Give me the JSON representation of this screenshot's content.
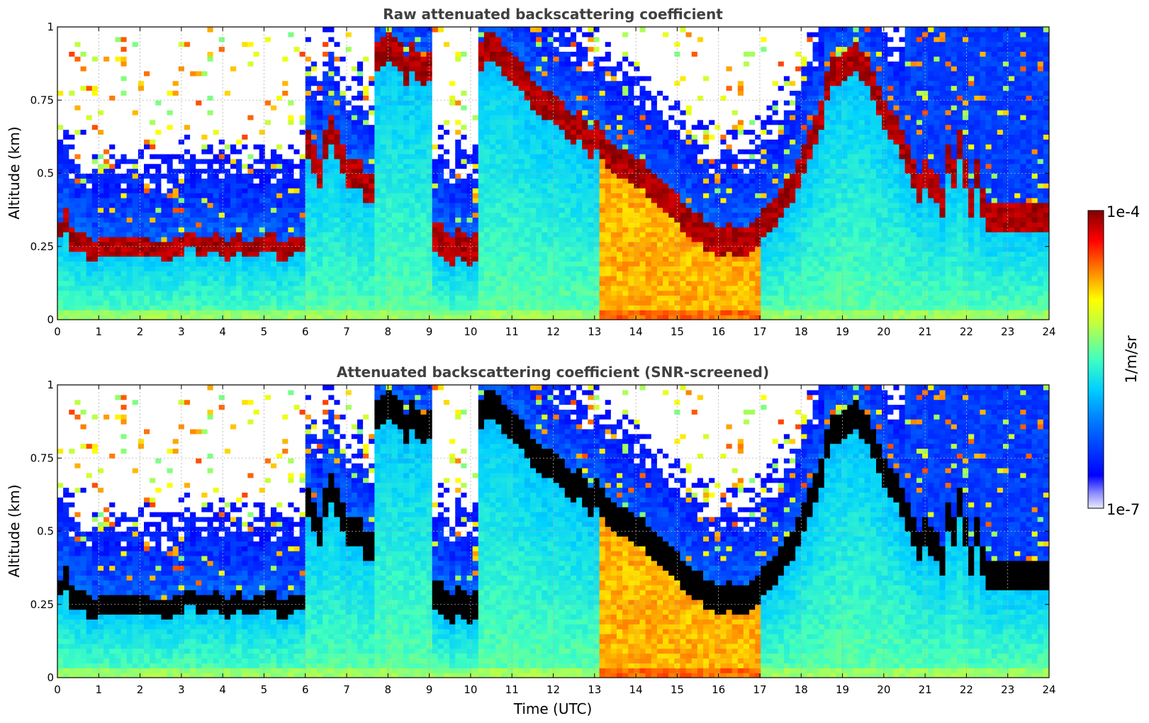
{
  "chart_data": [
    {
      "type": "heatmap",
      "title": "Raw attenuated backscattering coefficient",
      "xlabel": "",
      "ylabel": "Altitude (km)",
      "xlim": [
        0,
        24
      ],
      "ylim": [
        0,
        1
      ],
      "x_ticks": [
        "0",
        "1",
        "2",
        "3",
        "4",
        "5",
        "6",
        "7",
        "8",
        "9",
        "10",
        "11",
        "12",
        "13",
        "14",
        "15",
        "16",
        "17",
        "18",
        "19",
        "20",
        "21",
        "22",
        "23",
        "24"
      ],
      "y_ticks": [
        "0",
        "0.25",
        "0.5",
        "0.75",
        "1"
      ],
      "grid": true,
      "screened": false
    },
    {
      "type": "heatmap",
      "title": "Attenuated backscattering coefficient (SNR-screened)",
      "xlabel": "Time (UTC)",
      "ylabel": "Altitude (km)",
      "xlim": [
        0,
        24
      ],
      "ylim": [
        0,
        1
      ],
      "x_ticks": [
        "0",
        "1",
        "2",
        "3",
        "4",
        "5",
        "6",
        "7",
        "8",
        "9",
        "10",
        "11",
        "12",
        "13",
        "14",
        "15",
        "16",
        "17",
        "18",
        "19",
        "20",
        "21",
        "22",
        "23",
        "24"
      ],
      "y_ticks": [
        "0",
        "0.25",
        "0.5",
        "0.75",
        "1"
      ],
      "grid": true,
      "screened": true
    }
  ],
  "colorbar": {
    "label": "1/m/sr",
    "max_label": "1e-4",
    "min_label": "1e-7",
    "scale": "log",
    "range": [
      1e-07,
      0.0001
    ],
    "colormap": "jet"
  },
  "profile": {
    "cloud_base_km": [
      0.28,
      0.3,
      0.24,
      0.24,
      0.24,
      0.2,
      0.2,
      0.22,
      0.22,
      0.22,
      0.22,
      0.22,
      0.22,
      0.22,
      0.22,
      0.22,
      0.21,
      0.21,
      0.2,
      0.2,
      0.22,
      0.22,
      0.25,
      0.25,
      0.22,
      0.22,
      0.23,
      0.24,
      0.22,
      0.2,
      0.22,
      0.24,
      0.21,
      0.21,
      0.22,
      0.23,
      0.24,
      0.24,
      0.2,
      0.2,
      0.22,
      0.23,
      0.23,
      0.55,
      0.5,
      0.45,
      0.55,
      0.6,
      0.55,
      0.5,
      0.45,
      0.45,
      0.45,
      0.4,
      0.4,
      0.85,
      0.86,
      0.88,
      0.86,
      0.85,
      0.8,
      0.85,
      0.82,
      0.8,
      0.82,
      0.23,
      0.22,
      0.2,
      0.18,
      0.22,
      0.2,
      0.18,
      0.2,
      0.85,
      0.88,
      0.88,
      0.86,
      0.84,
      0.82,
      0.8,
      0.78,
      0.75,
      0.72,
      0.7,
      0.68,
      0.68,
      0.66,
      0.65,
      0.62,
      0.6,
      0.62,
      0.58,
      0.55,
      0.58,
      0.55,
      0.52,
      0.5,
      0.48,
      0.48,
      0.46,
      0.45,
      0.45,
      0.42,
      0.4,
      0.38,
      0.36,
      0.35,
      0.33,
      0.3,
      0.28,
      0.26,
      0.26,
      0.24,
      0.24,
      0.22,
      0.22,
      0.24,
      0.22,
      0.22,
      0.22,
      0.24,
      0.25,
      0.28,
      0.3,
      0.32,
      0.35,
      0.38,
      0.4,
      0.45,
      0.5,
      0.55,
      0.6,
      0.65,
      0.75,
      0.8,
      0.8,
      0.82,
      0.84,
      0.85,
      0.82,
      0.8,
      0.75,
      0.7,
      0.65,
      0.62,
      0.6,
      0.55,
      0.5,
      0.45,
      0.4,
      0.45,
      0.42,
      0.4,
      0.35,
      0.5,
      0.45,
      0.55,
      0.45,
      0.35,
      0.45,
      0.35,
      0.3,
      0.3,
      0.3,
      0.3,
      0.3,
      0.3,
      0.3,
      0.3,
      0.3,
      0.3,
      0.3
    ],
    "cloud_top_km": [
      0.34,
      0.38,
      0.32,
      0.3,
      0.3,
      0.28,
      0.26,
      0.28,
      0.28,
      0.28,
      0.28,
      0.28,
      0.28,
      0.28,
      0.28,
      0.28,
      0.27,
      0.27,
      0.26,
      0.26,
      0.28,
      0.28,
      0.3,
      0.3,
      0.28,
      0.28,
      0.29,
      0.3,
      0.28,
      0.26,
      0.28,
      0.3,
      0.27,
      0.27,
      0.28,
      0.29,
      0.3,
      0.3,
      0.26,
      0.26,
      0.28,
      0.29,
      0.29,
      0.65,
      0.6,
      0.55,
      0.65,
      0.7,
      0.65,
      0.6,
      0.55,
      0.55,
      0.55,
      0.5,
      0.5,
      0.95,
      0.96,
      0.98,
      0.96,
      0.95,
      0.9,
      0.95,
      0.92,
      0.9,
      0.92,
      0.34,
      0.33,
      0.3,
      0.28,
      0.32,
      0.3,
      0.28,
      0.3,
      0.95,
      0.98,
      0.98,
      0.96,
      0.94,
      0.92,
      0.9,
      0.88,
      0.85,
      0.82,
      0.8,
      0.78,
      0.78,
      0.76,
      0.75,
      0.72,
      0.7,
      0.72,
      0.68,
      0.65,
      0.68,
      0.65,
      0.62,
      0.6,
      0.58,
      0.58,
      0.56,
      0.55,
      0.55,
      0.52,
      0.5,
      0.48,
      0.46,
      0.45,
      0.43,
      0.4,
      0.38,
      0.36,
      0.36,
      0.34,
      0.34,
      0.32,
      0.32,
      0.34,
      0.32,
      0.32,
      0.32,
      0.34,
      0.35,
      0.38,
      0.4,
      0.42,
      0.45,
      0.48,
      0.5,
      0.55,
      0.6,
      0.65,
      0.7,
      0.75,
      0.85,
      0.9,
      0.9,
      0.92,
      0.94,
      0.95,
      0.92,
      0.9,
      0.85,
      0.8,
      0.75,
      0.72,
      0.7,
      0.65,
      0.6,
      0.55,
      0.5,
      0.55,
      0.52,
      0.5,
      0.45,
      0.6,
      0.55,
      0.65,
      0.55,
      0.45,
      0.55,
      0.45,
      0.4,
      0.4,
      0.4,
      0.4,
      0.4,
      0.4,
      0.4,
      0.4,
      0.4,
      0.4,
      0.4
    ]
  }
}
